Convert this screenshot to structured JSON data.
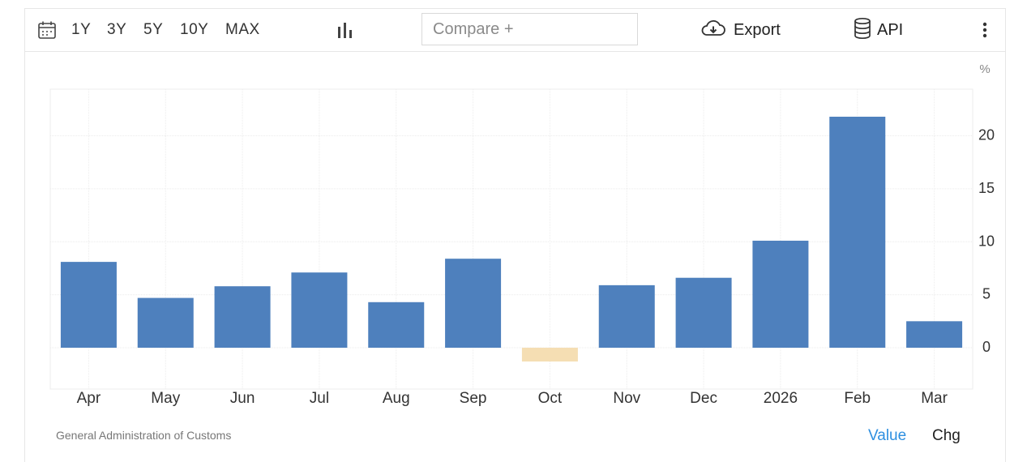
{
  "toolbar": {
    "ranges": [
      "1Y",
      "3Y",
      "5Y",
      "10Y",
      "MAX"
    ],
    "compare_placeholder": "Compare +",
    "export_label": "Export",
    "api_label": "API",
    "icons": {
      "calendar": "calendar-icon",
      "chart_type": "bar-chart-icon",
      "export": "cloud-download-icon",
      "api": "database-icon",
      "more": "more-vertical-icon"
    }
  },
  "footer": {
    "source": "General Administration of Customs",
    "tab_value": "Value",
    "tab_chg": "Chg"
  },
  "colors": {
    "positive_bar": "#4e80bd",
    "negative_bar": "#f5deb3",
    "active_tab": "#2e8fe0",
    "grid": "#ececec"
  },
  "chart_data": {
    "type": "bar",
    "categories": [
      "Apr",
      "May",
      "Jun",
      "Jul",
      "Aug",
      "Sep",
      "Oct",
      "Nov",
      "Dec",
      "2026",
      "Feb",
      "Mar"
    ],
    "values": [
      8.1,
      4.7,
      5.8,
      7.1,
      4.3,
      8.4,
      -1.3,
      5.9,
      6.6,
      10.1,
      21.8,
      2.5
    ],
    "ylabel": "%",
    "y_ticks": [
      0,
      5,
      10,
      15,
      20
    ],
    "ylim": [
      -3.9,
      24.4
    ],
    "grid": true,
    "y_axis_position": "right"
  }
}
